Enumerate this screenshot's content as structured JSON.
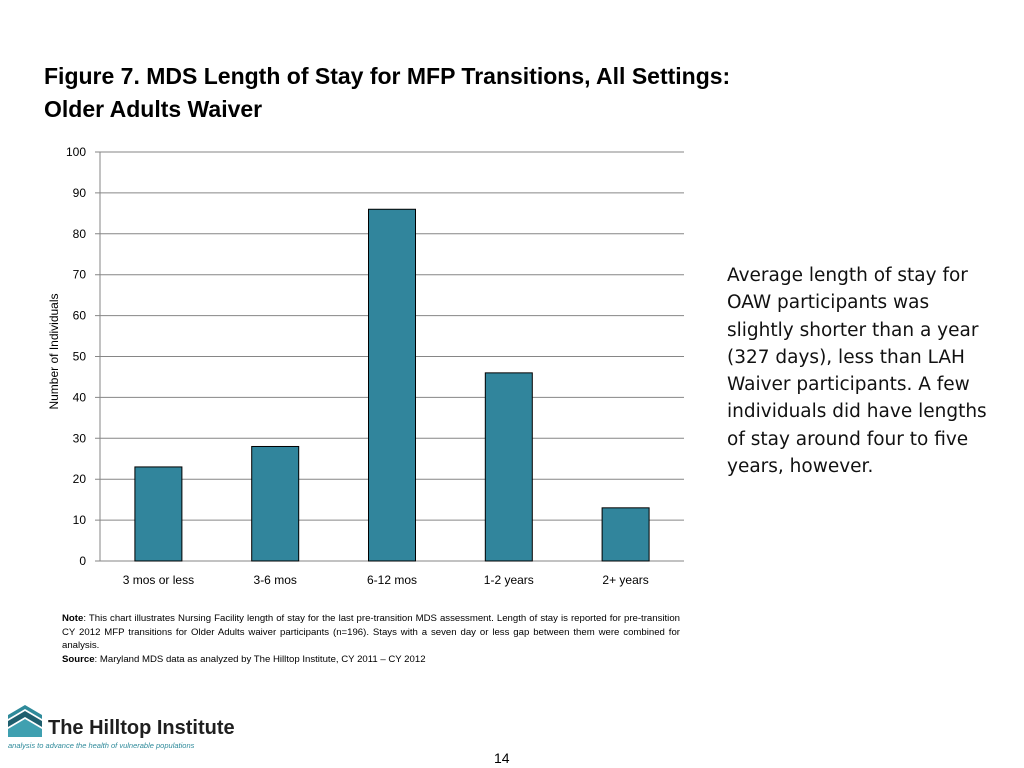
{
  "title": {
    "line1": "Figure 7. MDS Length of Stay for MFP Transitions, All Settings:",
    "line2": "Older Adults Waiver"
  },
  "chart_data": {
    "type": "bar",
    "title": "Figure 7. MDS Length of Stay for MFP Transitions, All Settings: Older Adults Waiver",
    "categories": [
      "3 mos or less",
      "3-6 mos",
      "6-12 mos",
      "1-2 years",
      "2+ years"
    ],
    "values": [
      23,
      28,
      86,
      46,
      13
    ],
    "xlabel": "",
    "ylabel": "Number of Individuals",
    "ylim": [
      0,
      100
    ],
    "yticks": [
      0,
      10,
      20,
      30,
      40,
      50,
      60,
      70,
      80,
      90,
      100
    ],
    "grid": true,
    "bar_color": "#31859c"
  },
  "side_text": "Average length of stay for OAW participants was slightly shorter than a year (327 days), less than LAH Waiver participants. A few individuals did have lengths of stay around four to five years, however.",
  "note": {
    "label": "Note",
    "text": ": This chart illustrates Nursing Facility length of stay for the last pre-transition MDS assessment.  Length of stay is reported for pre-transition CY 2012 MFP transitions for Older Adults waiver participants (n=196). Stays with a seven day or less gap between them were combined for analysis.",
    "source_label": "Source",
    "source_text": ": Maryland MDS data as analyzed by The Hilltop Institute, CY 2011 – CY 2012"
  },
  "logo": {
    "name": "The Hilltop Institute",
    "tagline": "analysis to advance the health of vulnerable populations"
  },
  "page_number": "14"
}
